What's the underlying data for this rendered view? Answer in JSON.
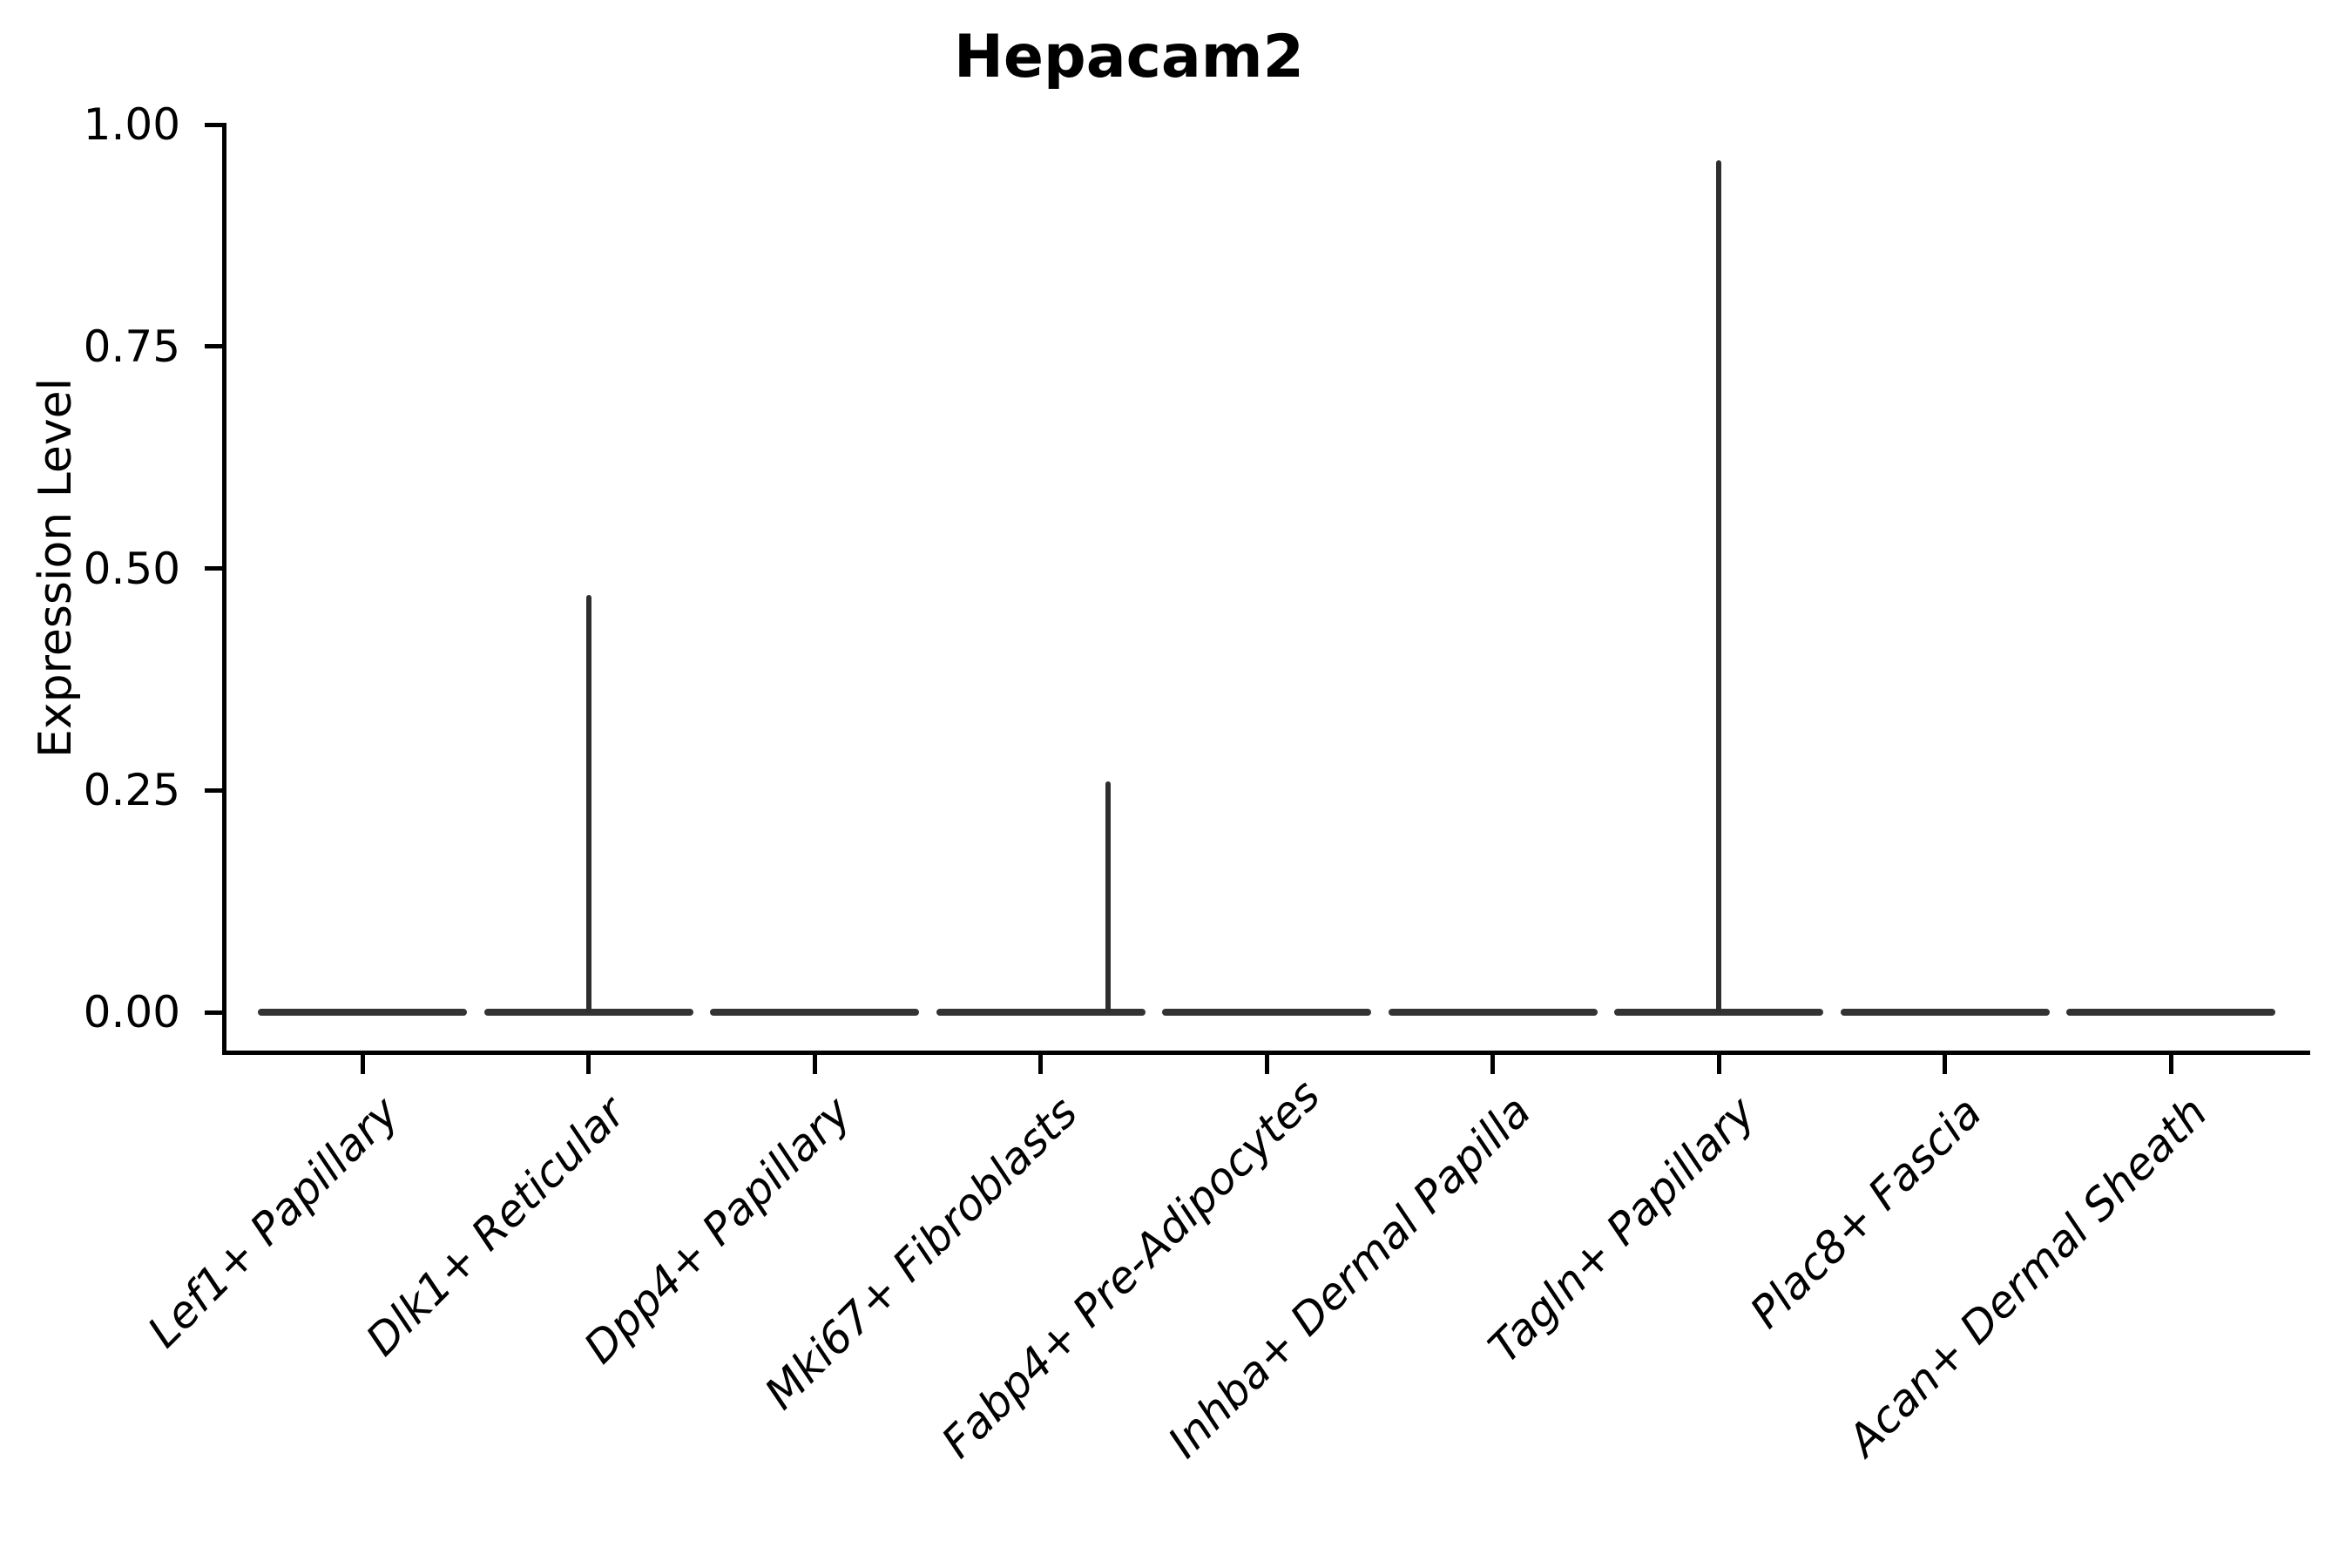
{
  "title": "Hepacam2",
  "ylabel": "Expression Level",
  "colors": {
    "background": "#ffffff",
    "axis": "#000000",
    "text": "#000000",
    "violin": "#333333",
    "spike": "#2e2e2e"
  },
  "chart_data": {
    "type": "violin",
    "title": "Hepacam2",
    "xlabel": "",
    "ylabel": "Expression Level",
    "ylim": [
      0,
      1
    ],
    "grid": false,
    "legend": "none",
    "y_ticks": [
      {
        "value": 0.0,
        "label": "0.00"
      },
      {
        "value": 0.25,
        "label": "0.25"
      },
      {
        "value": 0.5,
        "label": "0.50"
      },
      {
        "value": 0.75,
        "label": "0.75"
      },
      {
        "value": 1.0,
        "label": "1.00"
      }
    ],
    "categories": [
      "Lef1+ Papillary",
      "Dlk1+ Reticular",
      "Dpp4+ Papillary",
      "Mki67+ Fibroblasts",
      "Fabp4+ Pre-Adipocytes",
      "Inhba+ Dermal Papilla",
      "Tagln+ Papillary",
      "Plac8+ Fascia",
      "Acan+ Dermal Sheath"
    ],
    "violins": [
      {
        "label": "Lef1+ Papillary",
        "median": 0.0,
        "peak": 0.0,
        "peak_offset_frac": 0.0
      },
      {
        "label": "Dlk1+ Reticular",
        "median": 0.0,
        "peak": 0.47,
        "peak_offset_frac": 0.0
      },
      {
        "label": "Dpp4+ Papillary",
        "median": 0.0,
        "peak": 0.0,
        "peak_offset_frac": 0.0
      },
      {
        "label": "Mki67+ Fibroblasts",
        "median": 0.0,
        "peak": 0.26,
        "peak_offset_frac": 0.3
      },
      {
        "label": "Fabp4+ Pre-Adipocytes",
        "median": 0.0,
        "peak": 0.0,
        "peak_offset_frac": 0.0
      },
      {
        "label": "Inhba+ Dermal Papilla",
        "median": 0.0,
        "peak": 0.0,
        "peak_offset_frac": 0.0
      },
      {
        "label": "Tagln+ Papillary",
        "median": 0.0,
        "peak": 0.96,
        "peak_offset_frac": 0.0
      },
      {
        "label": "Plac8+ Fascia",
        "median": 0.0,
        "peak": 0.0,
        "peak_offset_frac": 0.0
      },
      {
        "label": "Acan+ Dermal Sheath",
        "median": 0.0,
        "peak": 0.0,
        "peak_offset_frac": 0.0
      }
    ]
  }
}
